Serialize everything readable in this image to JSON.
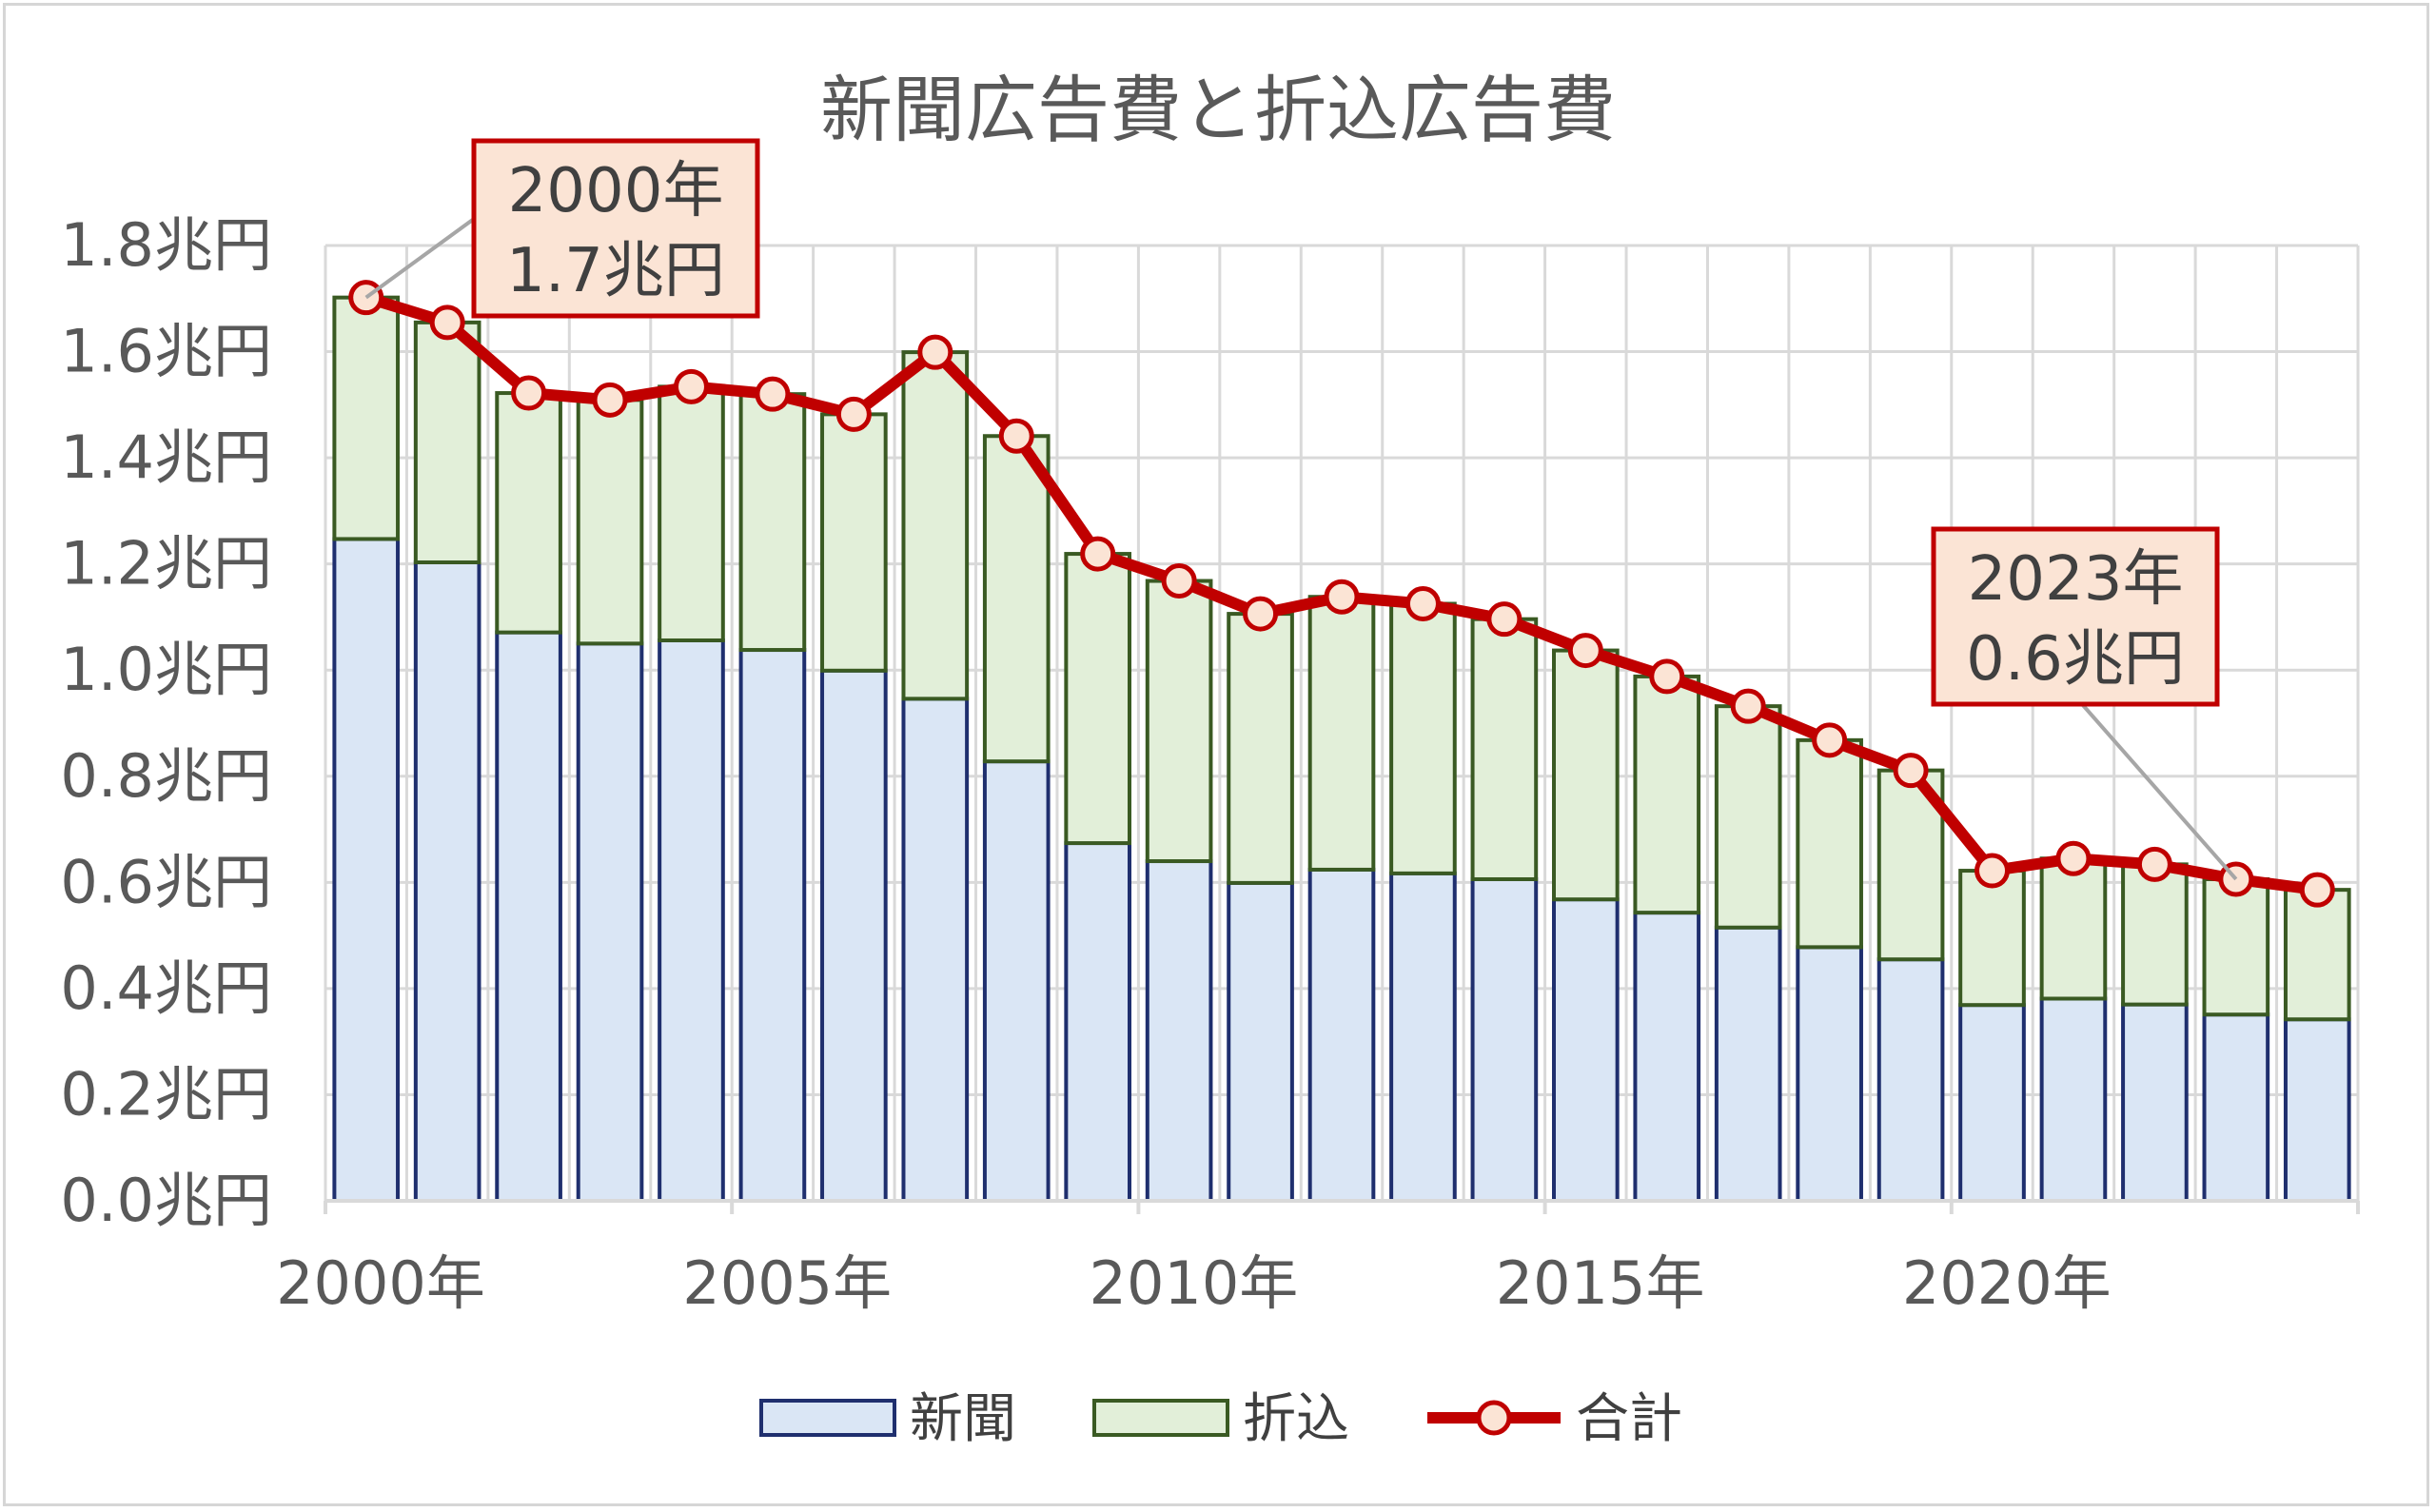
{
  "chart_data": {
    "type": "bar",
    "stacked": true,
    "title": "新聞広告費と折込広告費",
    "years": [
      2000,
      2001,
      2002,
      2003,
      2004,
      2005,
      2006,
      2007,
      2008,
      2009,
      2010,
      2011,
      2012,
      2013,
      2014,
      2015,
      2016,
      2017,
      2018,
      2019,
      2020,
      2021,
      2022,
      2023,
      2024
    ],
    "x_tick_labels": [
      "2000年",
      "2005年",
      "2010年",
      "2015年",
      "2020年"
    ],
    "y_tick_labels": [
      "0.0兆円",
      "0.2兆円",
      "0.4兆円",
      "0.6兆円",
      "0.8兆円",
      "1.0兆円",
      "1.2兆円",
      "1.4兆円",
      "1.6兆円",
      "1.8兆円"
    ],
    "ylim": [
      0,
      1.8
    ],
    "y_unit": "兆円",
    "grid": true,
    "legend_position": "bottom",
    "series": [
      {
        "name": "新聞",
        "kind": "bar",
        "fill": "#dae6f5",
        "stroke": "#1f2f6e",
        "values": [
          1.247,
          1.203,
          1.071,
          1.05,
          1.056,
          1.038,
          0.999,
          0.946,
          0.828,
          0.674,
          0.64,
          0.599,
          0.624,
          0.617,
          0.606,
          0.568,
          0.543,
          0.515,
          0.478,
          0.455,
          0.369,
          0.381,
          0.37,
          0.351,
          0.342
        ]
      },
      {
        "name": "折込",
        "kind": "bar",
        "fill": "#e2efd9",
        "stroke": "#3a5a23",
        "values": [
          0.455,
          0.452,
          0.451,
          0.459,
          0.478,
          0.482,
          0.483,
          0.653,
          0.613,
          0.545,
          0.528,
          0.507,
          0.514,
          0.508,
          0.49,
          0.469,
          0.445,
          0.417,
          0.39,
          0.356,
          0.253,
          0.264,
          0.264,
          0.255,
          0.244
        ]
      },
      {
        "name": "合計",
        "kind": "line",
        "color": "#c00000",
        "marker_fill": "#fbe4d5",
        "values": [
          1.702,
          1.655,
          1.522,
          1.509,
          1.534,
          1.52,
          1.482,
          1.599,
          1.441,
          1.219,
          1.168,
          1.106,
          1.138,
          1.125,
          1.096,
          1.037,
          0.988,
          0.932,
          0.868,
          0.811,
          0.622,
          0.645,
          0.634,
          0.606,
          0.586
        ]
      }
    ],
    "annotations": [
      {
        "line1": "2000年",
        "line2": "1.7兆円",
        "target_year": 2000
      },
      {
        "line1": "2023年",
        "line2": "0.6兆円",
        "target_year": 2023
      }
    ],
    "colors": {
      "grid": "#d9d9d9",
      "callout_fill": "#fbe4d5",
      "callout_border": "#c00000",
      "leader": "#a6a6a6"
    }
  }
}
